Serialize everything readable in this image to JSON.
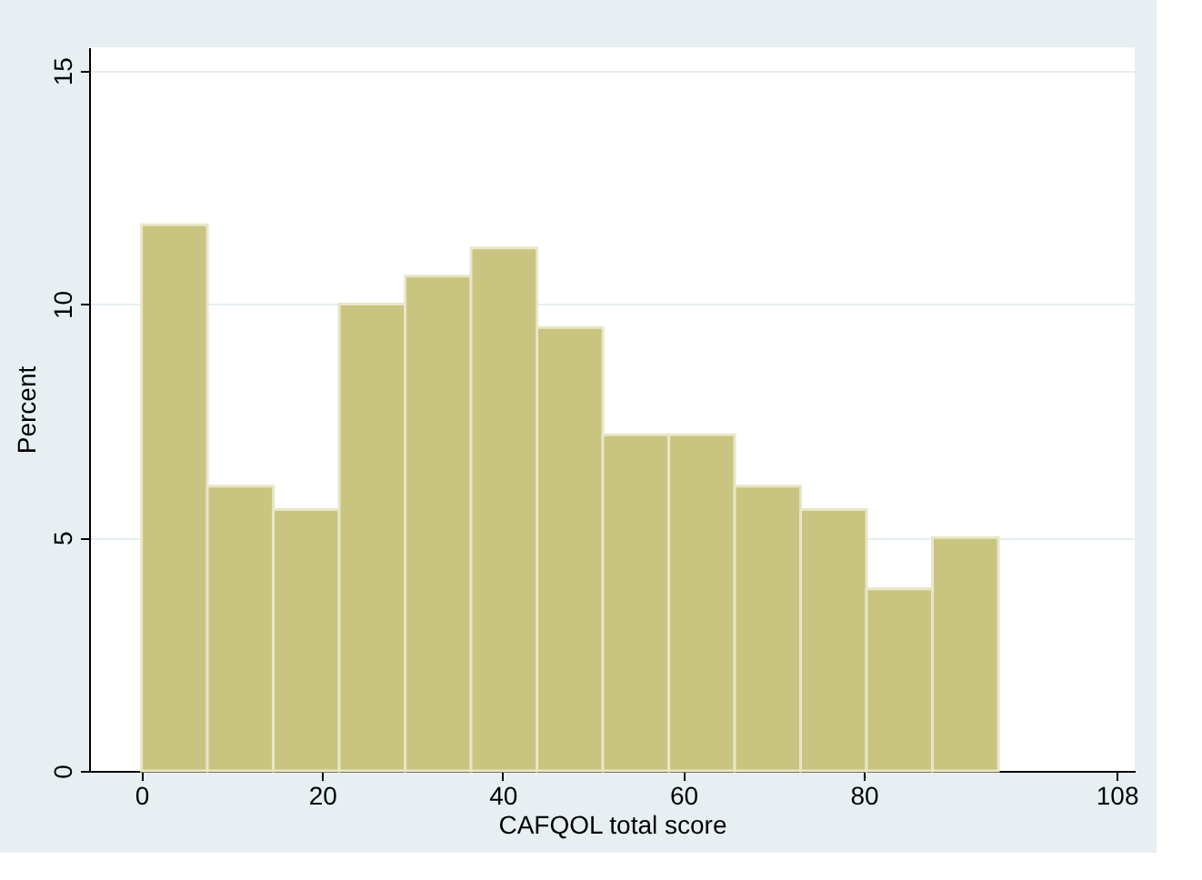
{
  "chart_data": {
    "type": "histogram",
    "xlabel": "CAFQOL total score",
    "ylabel": "Percent",
    "bins": [
      0,
      7.3,
      14.6,
      21.9,
      29.2,
      36.5,
      43.8,
      51.1,
      58.4,
      65.7,
      73.0,
      80.3,
      87.6,
      94.9
    ],
    "values": [
      11.7,
      6.1,
      5.6,
      10.0,
      10.6,
      11.2,
      9.5,
      7.2,
      7.2,
      6.1,
      5.6,
      3.9,
      5.0
    ],
    "color": "#c9c47f",
    "xlim": [
      -5.8,
      110
    ],
    "xticks": [
      0,
      20,
      40,
      60,
      80,
      108
    ],
    "ylim": [
      0,
      15.5
    ],
    "yticks": [
      0,
      5,
      10,
      15
    ],
    "grid": "y"
  }
}
